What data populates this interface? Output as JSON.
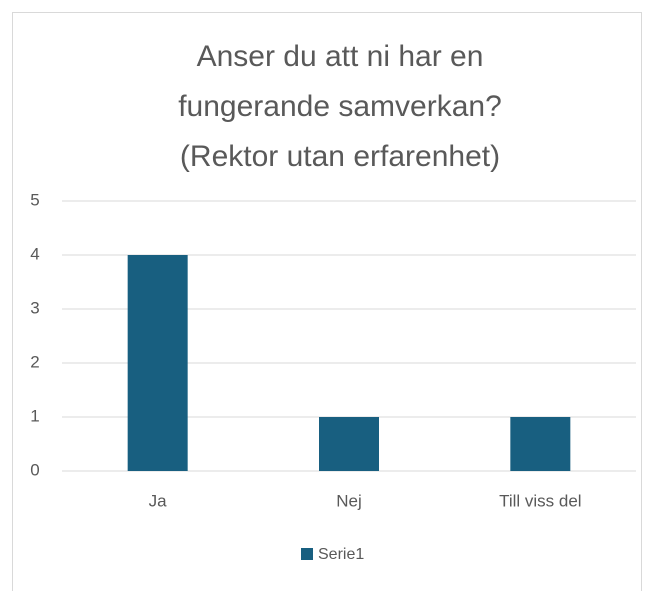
{
  "chart_data": {
    "type": "bar",
    "title": [
      "Anser du att ni har en",
      "fungerande samverkan?",
      "(Rektor utan erfarenhet)"
    ],
    "categories": [
      "Ja",
      "Nej",
      "Till viss del"
    ],
    "series": [
      {
        "name": "Serie1",
        "color": "#185f80",
        "values": [
          4,
          1,
          1
        ]
      }
    ],
    "ylim": [
      0,
      5
    ],
    "yticks": [
      0,
      1,
      2,
      3,
      4,
      5
    ],
    "grid": true,
    "legend": "bottom"
  }
}
